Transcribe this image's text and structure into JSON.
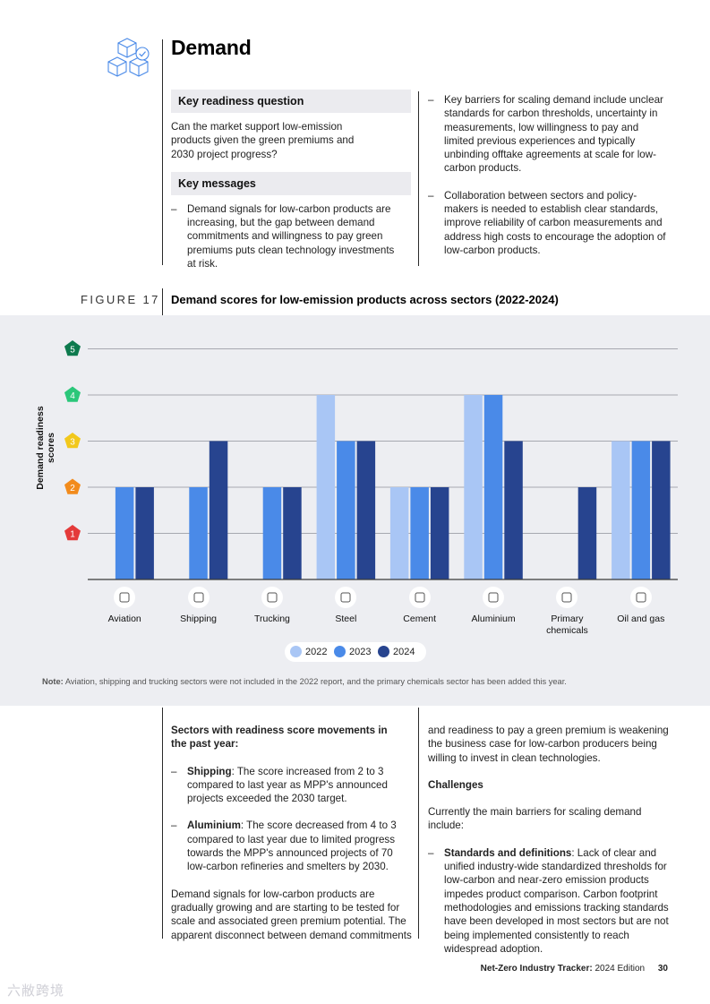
{
  "header": {
    "title": "Demand",
    "icon": "cubes-check-icon"
  },
  "readiness": {
    "question_heading": "Key readiness question",
    "question_text": "Can the market support low-emission products given the green premiums and 2030 project progress?",
    "messages_heading": "Key messages",
    "messages": [
      "Demand signals for low-carbon products are increasing, but the gap between demand commitments and willingness to pay green premiums puts clean technology investments at risk."
    ],
    "right_bullets": [
      "Key barriers for scaling demand include unclear standards for carbon thresholds, uncertainty in measurements, low willingness to pay and limited previous experiences and typically unbinding offtake agreements at scale for low-carbon products.",
      "Collaboration between sectors and policy-makers is needed to establish clear standards, improve reliability of carbon measurements and address high costs to encourage the adoption of low-carbon products."
    ]
  },
  "figure": {
    "label": "FIGURE 17",
    "title": "Demand scores for low-emission products across sectors (2022-2024)",
    "note_bold": "Note:",
    "note_text": " Aviation, shipping and trucking sectors were not included in the 2022 report, and the primary chemicals sector has been added this year."
  },
  "chart_data": {
    "type": "bar",
    "ylabel": "Demand readiness scores",
    "ylim": [
      0,
      5
    ],
    "yticks": [
      "1",
      "2",
      "3",
      "4",
      "5"
    ],
    "ytick_colors": [
      "#e43a3a",
      "#f28b1c",
      "#f2c81c",
      "#2bc77a",
      "#0e7a4e"
    ],
    "categories": [
      "Aviation",
      "Shipping",
      "Trucking",
      "Steel",
      "Cement",
      "Aluminium",
      "Primary chemicals",
      "Oil and gas"
    ],
    "category_icons": [
      "airplane-icon",
      "ship-icon",
      "truck-icon",
      "steel-icon",
      "cement-icon",
      "aluminium-can-icon",
      "chemical-bottle-icon",
      "oil-barrel-icon"
    ],
    "series": [
      {
        "name": "2022",
        "color": "#a9c6f5",
        "values": [
          null,
          null,
          null,
          4,
          2,
          4,
          null,
          3
        ]
      },
      {
        "name": "2023",
        "color": "#4a8ae8",
        "values": [
          2,
          2,
          2,
          3,
          2,
          4,
          null,
          3
        ]
      },
      {
        "name": "2024",
        "color": "#27448f",
        "values": [
          2,
          3,
          2,
          3,
          2,
          3,
          2,
          3
        ]
      }
    ]
  },
  "movements": {
    "heading": "Sectors with readiness score movements in the past year:",
    "items": [
      {
        "bold": "Shipping",
        "text": ": The score increased from 2 to 3 compared to last year as MPP's announced projects exceeded the 2030 target."
      },
      {
        "bold": "Aluminium",
        "text": ": The score decreased from 4 to 3 compared to last year due to limited progress towards the MPP's announced projects of 70 low-carbon refineries and smelters by 2030."
      }
    ],
    "paragraph": "Demand signals for low-carbon products are gradually growing and are starting to be tested for scale and associated green premium potential. The apparent disconnect between demand commitments"
  },
  "challenges": {
    "continuation": "and readiness to pay a green premium is weakening the business case for low-carbon producers being willing to invest in clean technologies.",
    "heading": "Challenges",
    "intro": "Currently the main barriers for scaling demand include:",
    "items": [
      {
        "bold": "Standards and definitions",
        "text": ": Lack of clear and unified industry-wide standardized thresholds for low-carbon and near-zero emission products impedes product comparison. Carbon footprint methodologies and emissions tracking standards have been developed in most sectors but are not being implemented consistently to reach widespread adoption."
      }
    ]
  },
  "footer": {
    "report_bold": "Net-Zero Industry Tracker:",
    "edition": " 2024 Edition",
    "page": "30"
  },
  "watermark": "六敝跨境"
}
